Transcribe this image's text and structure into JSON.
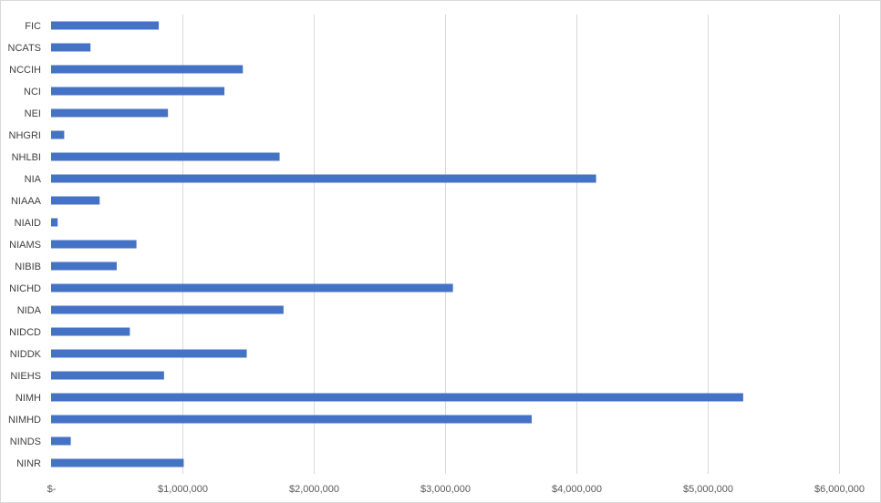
{
  "chart_data": {
    "type": "bar",
    "orientation": "horizontal",
    "title": "",
    "xlabel": "",
    "ylabel": "",
    "categories": [
      "FIC",
      "NCATS",
      "NCCIH",
      "NCI",
      "NEI",
      "NHGRI",
      "NHLBI",
      "NIA",
      "NIAAA",
      "NIAID",
      "NIAMS",
      "NIBIB",
      "NICHD",
      "NIDA",
      "NIDCD",
      "NIDDK",
      "NIEHS",
      "NIMH",
      "NIMHD",
      "NINDS",
      "NINR"
    ],
    "values": [
      820000,
      300000,
      1460000,
      1320000,
      890000,
      100000,
      1740000,
      4150000,
      370000,
      50000,
      650000,
      500000,
      3060000,
      1770000,
      600000,
      1490000,
      860000,
      5270000,
      3660000,
      150000,
      1010000
    ],
    "xlim": [
      0,
      6000000
    ],
    "x_ticks": [
      0,
      1000000,
      2000000,
      3000000,
      4000000,
      5000000,
      6000000
    ],
    "x_tick_labels": [
      "$-",
      "$1,000,000",
      "$2,000,000",
      "$3,000,000",
      "$4,000,000",
      "$5,000,000",
      "$6,000,000"
    ],
    "grid": "vertical",
    "legend": "none",
    "bar_color": "#4472c4",
    "grid_color": "#d9d9d9"
  }
}
